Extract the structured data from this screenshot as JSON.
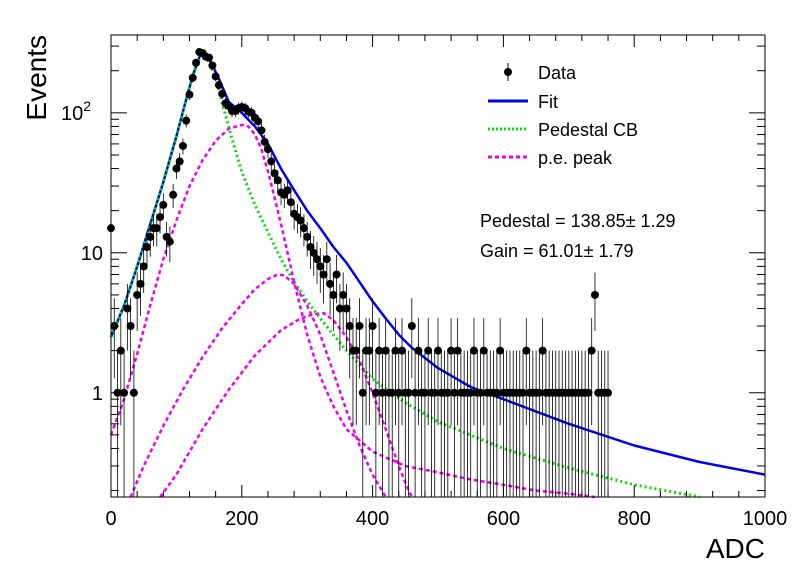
{
  "chart_data": {
    "type": "scatter",
    "xlabel": "ADC",
    "ylabel": "Events",
    "xlim": [
      0,
      1000
    ],
    "ylim": [
      0.18,
      360
    ],
    "yscale": "log",
    "x_ticks": [
      {
        "value": 0,
        "label": "0"
      },
      {
        "value": 200,
        "label": "200"
      },
      {
        "value": 400,
        "label": "400"
      },
      {
        "value": 600,
        "label": "600"
      },
      {
        "value": 800,
        "label": "800"
      },
      {
        "value": 1000,
        "label": "1000"
      }
    ],
    "y_ticks": [
      {
        "value": 1,
        "label": "1"
      },
      {
        "value": 10,
        "label": "10"
      },
      {
        "value": 100,
        "label": "10",
        "exp": "2"
      }
    ],
    "legend": {
      "placement": "top-right",
      "entries": [
        {
          "label": "Data",
          "style": "marker",
          "color": "#000000"
        },
        {
          "label": "Fit",
          "style": "solid",
          "color": "#0000ee"
        },
        {
          "label": "Pedestal CB",
          "style": "dotted",
          "color": "#00dd00"
        },
        {
          "label": "p.e. peak",
          "style": "dotted",
          "color": "#ee00ee"
        }
      ]
    },
    "annotations": [
      {
        "text": "Pedestal = 138.85",
        "pm": "±",
        "err": "1.29"
      },
      {
        "text": "Gain = 61.01",
        "pm": "±",
        "err": "1.79"
      }
    ],
    "colors": {
      "data": "#000000",
      "fit": "#0000ee",
      "pedestal": "#00dd00",
      "pe": "#ee00ee"
    },
    "series": [
      {
        "name": "Data",
        "kind": "points",
        "points": [
          [
            0,
            15
          ],
          [
            5,
            3
          ],
          [
            10,
            1
          ],
          [
            15,
            2
          ],
          [
            20,
            1
          ],
          [
            25,
            4
          ],
          [
            30,
            3
          ],
          [
            35,
            1
          ],
          [
            40,
            5
          ],
          [
            45,
            6
          ],
          [
            50,
            8
          ],
          [
            55,
            11
          ],
          [
            60,
            13
          ],
          [
            65,
            15
          ],
          [
            70,
            15
          ],
          [
            75,
            18
          ],
          [
            80,
            22
          ],
          [
            85,
            13
          ],
          [
            90,
            12
          ],
          [
            95,
            26
          ],
          [
            100,
            40
          ],
          [
            105,
            45
          ],
          [
            110,
            58
          ],
          [
            115,
            88
          ],
          [
            120,
            135
          ],
          [
            125,
            178
          ],
          [
            130,
            228
          ],
          [
            135,
            272
          ],
          [
            140,
            268
          ],
          [
            145,
            252
          ],
          [
            150,
            248
          ],
          [
            155,
            218
          ],
          [
            160,
            182
          ],
          [
            165,
            158
          ],
          [
            170,
            137
          ],
          [
            175,
            117
          ],
          [
            180,
            112
          ],
          [
            185,
            103
          ],
          [
            190,
            103
          ],
          [
            195,
            108
          ],
          [
            200,
            110
          ],
          [
            205,
            108
          ],
          [
            210,
            102
          ],
          [
            215,
            100
          ],
          [
            220,
            92
          ],
          [
            225,
            87
          ],
          [
            230,
            75
          ],
          [
            235,
            62
          ],
          [
            240,
            55
          ],
          [
            245,
            45
          ],
          [
            250,
            37
          ],
          [
            255,
            33
          ],
          [
            260,
            27
          ],
          [
            265,
            26
          ],
          [
            270,
            28
          ],
          [
            275,
            23
          ],
          [
            280,
            19
          ],
          [
            285,
            18
          ],
          [
            290,
            17
          ],
          [
            295,
            15
          ],
          [
            300,
            13
          ],
          [
            305,
            11
          ],
          [
            310,
            10
          ],
          [
            315,
            9
          ],
          [
            320,
            8
          ],
          [
            325,
            7
          ],
          [
            330,
            9
          ],
          [
            335,
            6
          ],
          [
            340,
            5
          ],
          [
            345,
            7
          ],
          [
            350,
            4
          ],
          [
            355,
            5
          ],
          [
            360,
            4
          ],
          [
            365,
            3
          ],
          [
            370,
            2
          ],
          [
            375,
            2
          ],
          [
            380,
            3
          ],
          [
            385,
            1
          ],
          [
            390,
            2
          ],
          [
            395,
            2
          ],
          [
            400,
            3
          ],
          [
            405,
            1
          ],
          [
            410,
            2
          ],
          [
            415,
            1
          ],
          [
            420,
            2
          ],
          [
            425,
            1
          ],
          [
            430,
            1
          ],
          [
            435,
            2
          ],
          [
            440,
            1
          ],
          [
            445,
            2
          ],
          [
            450,
            1
          ],
          [
            455,
            1
          ],
          [
            460,
            3
          ],
          [
            465,
            1
          ],
          [
            470,
            2
          ],
          [
            475,
            1
          ],
          [
            480,
            1
          ],
          [
            485,
            2
          ],
          [
            490,
            1
          ],
          [
            495,
            1
          ],
          [
            500,
            2
          ],
          [
            505,
            1
          ],
          [
            510,
            1
          ],
          [
            515,
            1
          ],
          [
            520,
            2
          ],
          [
            525,
            1
          ],
          [
            530,
            2
          ],
          [
            535,
            1
          ],
          [
            540,
            1
          ],
          [
            545,
            1
          ],
          [
            550,
            1
          ],
          [
            555,
            2
          ],
          [
            560,
            1
          ],
          [
            565,
            1
          ],
          [
            570,
            2
          ],
          [
            575,
            1
          ],
          [
            580,
            1
          ],
          [
            585,
            1
          ],
          [
            590,
            1
          ],
          [
            595,
            2
          ],
          [
            600,
            1
          ],
          [
            605,
            1
          ],
          [
            610,
            1
          ],
          [
            615,
            1
          ],
          [
            620,
            1
          ],
          [
            625,
            1
          ],
          [
            630,
            1
          ],
          [
            635,
            2
          ],
          [
            640,
            1
          ],
          [
            645,
            1
          ],
          [
            650,
            1
          ],
          [
            655,
            1
          ],
          [
            660,
            2
          ],
          [
            665,
            1
          ],
          [
            670,
            1
          ],
          [
            675,
            1
          ],
          [
            680,
            1
          ],
          [
            685,
            1
          ],
          [
            690,
            1
          ],
          [
            695,
            1
          ],
          [
            700,
            1
          ],
          [
            705,
            1
          ],
          [
            710,
            1
          ],
          [
            715,
            1
          ],
          [
            720,
            1
          ],
          [
            725,
            1
          ],
          [
            730,
            1
          ],
          [
            735,
            2
          ],
          [
            740,
            5
          ],
          [
            745,
            1
          ],
          [
            750,
            1
          ],
          [
            755,
            1
          ],
          [
            760,
            1
          ]
        ]
      },
      {
        "name": "Fit",
        "kind": "line",
        "points": [
          [
            0,
            2.5
          ],
          [
            20,
            4.2
          ],
          [
            40,
            8
          ],
          [
            60,
            16
          ],
          [
            80,
            32
          ],
          [
            100,
            68
          ],
          [
            115,
            125
          ],
          [
            125,
            185
          ],
          [
            135,
            250
          ],
          [
            140,
            270
          ],
          [
            150,
            245
          ],
          [
            165,
            175
          ],
          [
            180,
            120
          ],
          [
            200,
            100
          ],
          [
            220,
            80
          ],
          [
            240,
            60
          ],
          [
            260,
            40
          ],
          [
            280,
            28
          ],
          [
            300,
            20
          ],
          [
            320,
            15
          ],
          [
            340,
            11
          ],
          [
            360,
            8.5
          ],
          [
            380,
            6.2
          ],
          [
            400,
            4.5
          ],
          [
            420,
            3.4
          ],
          [
            440,
            2.6
          ],
          [
            460,
            2.1
          ],
          [
            500,
            1.5
          ],
          [
            550,
            1.1
          ],
          [
            600,
            0.9
          ],
          [
            700,
            0.6
          ],
          [
            800,
            0.42
          ],
          [
            900,
            0.32
          ],
          [
            1000,
            0.26
          ]
        ]
      },
      {
        "name": "Pedestal CB",
        "kind": "line",
        "points": [
          [
            0,
            2.5
          ],
          [
            20,
            4.2
          ],
          [
            40,
            8
          ],
          [
            60,
            16
          ],
          [
            80,
            32
          ],
          [
            100,
            68
          ],
          [
            115,
            125
          ],
          [
            125,
            185
          ],
          [
            135,
            245
          ],
          [
            140,
            262
          ],
          [
            150,
            230
          ],
          [
            160,
            180
          ],
          [
            170,
            118
          ],
          [
            185,
            65
          ],
          [
            200,
            38
          ],
          [
            220,
            22
          ],
          [
            240,
            14
          ],
          [
            260,
            9
          ],
          [
            280,
            6.2
          ],
          [
            300,
            4.5
          ],
          [
            320,
            3.4
          ],
          [
            340,
            2.6
          ],
          [
            360,
            2
          ],
          [
            400,
            1.25
          ],
          [
            450,
            0.85
          ],
          [
            500,
            0.62
          ],
          [
            600,
            0.4
          ],
          [
            700,
            0.29
          ],
          [
            800,
            0.22
          ],
          [
            900,
            0.18
          ]
        ]
      },
      {
        "name": "p.e. peak",
        "kind": "line",
        "points": [
          [
            0,
            0.5
          ],
          [
            20,
            0.9
          ],
          [
            40,
            1.9
          ],
          [
            60,
            4.2
          ],
          [
            80,
            9
          ],
          [
            100,
            17
          ],
          [
            120,
            30
          ],
          [
            140,
            46
          ],
          [
            160,
            63
          ],
          [
            180,
            77
          ],
          [
            200,
            82
          ],
          [
            210,
            80
          ],
          [
            220,
            70
          ],
          [
            230,
            55
          ],
          [
            240,
            38
          ],
          [
            250,
            25
          ],
          [
            260,
            16
          ],
          [
            270,
            10
          ],
          [
            280,
            6.2
          ],
          [
            300,
            2.6
          ],
          [
            320,
            1.3
          ],
          [
            340,
            0.8
          ],
          [
            360,
            0.55
          ],
          [
            400,
            0.38
          ],
          [
            450,
            0.3
          ],
          [
            500,
            0.27
          ],
          [
            550,
            0.24
          ],
          [
            600,
            0.22
          ],
          [
            650,
            0.2
          ],
          [
            700,
            0.19
          ],
          [
            740,
            0.18
          ]
        ]
      },
      {
        "name": "p.e. peak",
        "kind": "line",
        "points": [
          [
            30,
            0.18
          ],
          [
            50,
            0.3
          ],
          [
            80,
            0.58
          ],
          [
            110,
            1.05
          ],
          [
            140,
            1.8
          ],
          [
            170,
            2.9
          ],
          [
            200,
            4.3
          ],
          [
            220,
            5.5
          ],
          [
            240,
            6.5
          ],
          [
            255,
            7
          ],
          [
            265,
            6.9
          ],
          [
            280,
            6
          ],
          [
            300,
            4.2
          ],
          [
            320,
            2.6
          ],
          [
            340,
            1.4
          ],
          [
            360,
            0.75
          ],
          [
            380,
            0.42
          ],
          [
            400,
            0.26
          ],
          [
            420,
            0.18
          ]
        ]
      },
      {
        "name": "p.e. peak",
        "kind": "line",
        "points": [
          [
            75,
            0.18
          ],
          [
            100,
            0.26
          ],
          [
            140,
            0.55
          ],
          [
            180,
            1.05
          ],
          [
            220,
            1.85
          ],
          [
            260,
            2.8
          ],
          [
            290,
            3.4
          ],
          [
            310,
            3.65
          ],
          [
            325,
            3.7
          ],
          [
            340,
            3.3
          ],
          [
            360,
            2.5
          ],
          [
            380,
            1.7
          ],
          [
            400,
            1
          ],
          [
            420,
            0.55
          ],
          [
            440,
            0.3
          ],
          [
            455,
            0.2
          ],
          [
            460,
            0.18
          ]
        ]
      }
    ]
  }
}
